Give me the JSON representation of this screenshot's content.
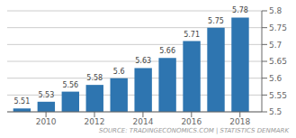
{
  "chart_data": {
    "type": "bar",
    "x": [
      2009,
      2010,
      2011,
      2012,
      2013,
      2014,
      2015,
      2016,
      2017,
      2018
    ],
    "values": [
      5.51,
      5.53,
      5.56,
      5.58,
      5.6,
      5.63,
      5.66,
      5.71,
      5.75,
      5.78
    ],
    "color": "#2e75b0",
    "xlim": [
      2008.4,
      2018.9
    ],
    "xticks": [
      2010,
      2012,
      2014,
      2016,
      2018
    ],
    "ylim": [
      5.5,
      5.8
    ],
    "yticks": [
      5.5,
      5.55,
      5.6,
      5.65,
      5.7,
      5.75,
      5.8
    ],
    "grid": true,
    "data_labels": true,
    "annotations": [
      "SOURCE: TRADINGECONOMICS.COM | STATISTICS DENMARK"
    ]
  }
}
